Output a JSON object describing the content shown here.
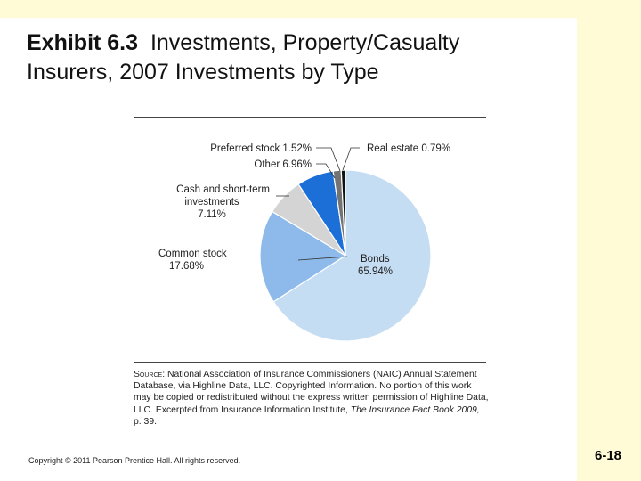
{
  "title": {
    "lead": "Exhibit 6.3",
    "line1_rest": "Investments, Property/Casualty",
    "line2": "Insurers, 2007 Investments by Type"
  },
  "chart_data": {
    "type": "pie",
    "title": "",
    "slices": [
      {
        "label": "Bonds",
        "value_label": "65.94%",
        "value": 65.94,
        "color": "#c5ddf3"
      },
      {
        "label": "Common stock",
        "value_label": "17.68%",
        "value": 17.68,
        "color": "#8dbaea"
      },
      {
        "label": "Cash and short-term investments",
        "value_label": "7.11%",
        "value": 7.11,
        "color": "#d4d4d4"
      },
      {
        "label": "Other",
        "value_label": "6.96%",
        "value": 6.96,
        "color": "#1c6fd6"
      },
      {
        "label": "Preferred stock",
        "value_label": "1.52%",
        "value": 1.52,
        "color": "#737373"
      },
      {
        "label": "Real estate",
        "value_label": "0.79%",
        "value": 0.79,
        "color": "#111111"
      }
    ],
    "text_labels": {
      "preferred": "Preferred stock 1.52%",
      "real_estate": "Real estate 0.79%",
      "other": "Other 6.96%",
      "cash_line1": "Cash and short-term",
      "cash_line2": "investments",
      "cash_line3": "7.11%",
      "common_line1": "Common stock",
      "common_line2": "17.68%",
      "bonds_line1": "Bonds",
      "bonds_line2": "65.94%"
    }
  },
  "source": {
    "label": "Source:",
    "text": "National Association of Insurance Commissioners (NAIC) Annual Statement Database, via Highline Data, LLC. Copyrighted Information. No portion of this work may be copied or redistributed without the express written permission of Highline Data, LLC. Excerpted from Insurance Information Institute,",
    "book": "The Insurance Fact Book 2009,",
    "page": "p. 39."
  },
  "footer": {
    "copyright": "Copyright © 2011 Pearson Prentice Hall. All rights reserved.",
    "slide_number": "6-18"
  }
}
